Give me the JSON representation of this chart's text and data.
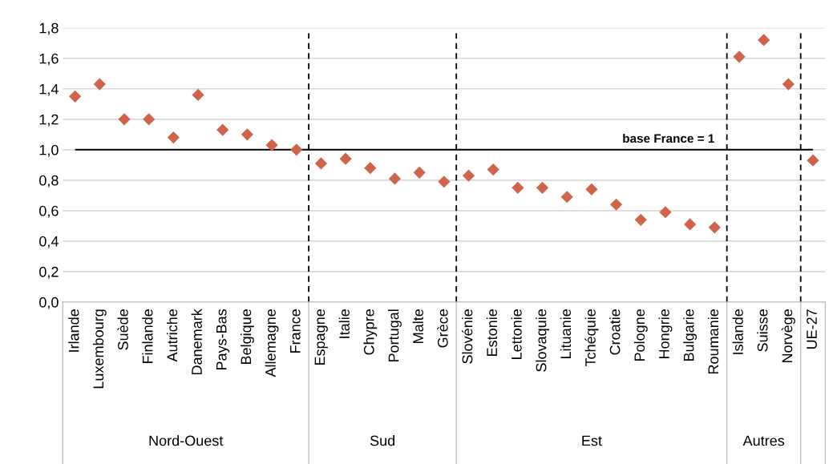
{
  "chart_data": {
    "type": "scatter",
    "categories": [
      "Irlande",
      "Luxembourg",
      "Suède",
      "Finlande",
      "Autriche",
      "Danemark",
      "Pays-Bas",
      "Belgique",
      "Allemagne",
      "France",
      "Espagne",
      "Italie",
      "Chypre",
      "Portugal",
      "Malte",
      "Grèce",
      "Slovénie",
      "Estonie",
      "Lettonie",
      "Slovaquie",
      "Lituanie",
      "Tchéquie",
      "Croatie",
      "Pologne",
      "Hongrie",
      "Bulgarie",
      "Roumanie",
      "Islande",
      "Suisse",
      "Norvège",
      "UE-27"
    ],
    "values": [
      1.35,
      1.43,
      1.2,
      1.2,
      1.08,
      1.36,
      1.13,
      1.1,
      1.03,
      1.0,
      0.91,
      0.94,
      0.88,
      0.81,
      0.85,
      0.79,
      0.83,
      0.87,
      0.75,
      0.75,
      0.69,
      0.74,
      0.64,
      0.54,
      0.59,
      0.51,
      0.49,
      1.61,
      1.72,
      1.43,
      0.93
    ],
    "color": "#d0644a",
    "marker": "diamond",
    "ylim": [
      0,
      1.8
    ],
    "yticks": [
      {
        "value": 0,
        "label": "0,0"
      },
      {
        "value": 0.2,
        "label": "0,2"
      },
      {
        "value": 0.4,
        "label": "0,4"
      },
      {
        "value": 0.6,
        "label": "0,6"
      },
      {
        "value": 0.8,
        "label": "0,8"
      },
      {
        "value": 1.0,
        "label": "1,0"
      },
      {
        "value": 1.2,
        "label": "1,2"
      },
      {
        "value": 1.4,
        "label": "1,4"
      },
      {
        "value": 1.6,
        "label": "1,6"
      },
      {
        "value": 1.8,
        "label": "1,8"
      }
    ],
    "grid": "y",
    "legend": false,
    "ref_lines": [
      {
        "axis": "y",
        "value": 1,
        "label": "base France = 1",
        "color": "#000000",
        "line_style": "solid"
      }
    ],
    "annotations": [
      "Nord-Ouest",
      "Sud",
      "Est",
      "Autres"
    ]
  }
}
